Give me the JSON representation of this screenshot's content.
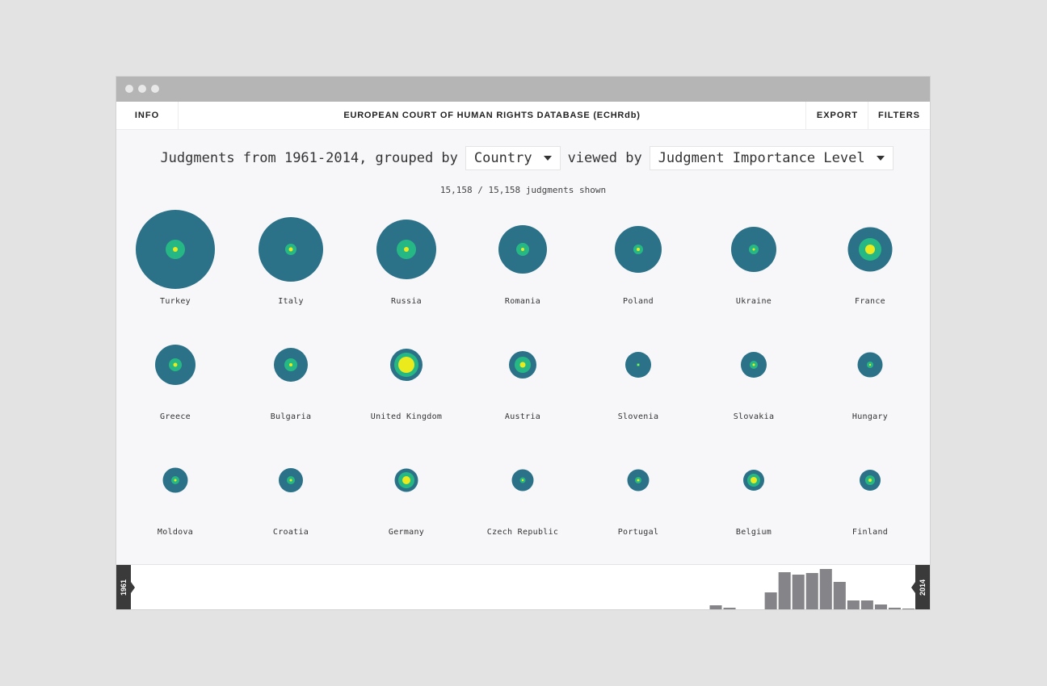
{
  "window": {
    "traffic_lights": [
      "close-dot",
      "minimize-dot",
      "maximize-dot"
    ]
  },
  "nav": {
    "info": "INFO",
    "title": "EUROPEAN COURT OF HUMAN RIGHTS DATABASE (ECHRdb)",
    "export": "EXPORT",
    "filters": "FILTERS"
  },
  "controls": {
    "prefix": "Judgments from 1961-2014, grouped by",
    "group_by": "Country",
    "middle": "viewed by",
    "view_by": "Judgment Importance Level"
  },
  "count_text": "15,158 / 15,158 judgments shown",
  "colors": {
    "outer": "#2b7289",
    "middle": "#26b884",
    "inner": "#eaea1d",
    "bars": "#858589",
    "handle": "#3a3a3a"
  },
  "countries": [
    {
      "name": "Turkey",
      "outer": 49,
      "middle": 12,
      "inner": 3
    },
    {
      "name": "Italy",
      "outer": 40,
      "middle": 7,
      "inner": 2.5
    },
    {
      "name": "Russia",
      "outer": 37,
      "middle": 12,
      "inner": 3
    },
    {
      "name": "Romania",
      "outer": 30,
      "middle": 8,
      "inner": 2
    },
    {
      "name": "Poland",
      "outer": 29,
      "middle": 6,
      "inner": 2
    },
    {
      "name": "Ukraine",
      "outer": 28,
      "middle": 6,
      "inner": 1.5
    },
    {
      "name": "France",
      "outer": 27.5,
      "middle": 14,
      "inner": 6
    },
    {
      "name": "Greece",
      "outer": 25,
      "middle": 8,
      "inner": 2.5
    },
    {
      "name": "Bulgaria",
      "outer": 21,
      "middle": 8,
      "inner": 2
    },
    {
      "name": "United Kingdom",
      "outer": 20,
      "middle": 15,
      "inner": 10
    },
    {
      "name": "Austria",
      "outer": 17,
      "middle": 10,
      "inner": 3.5
    },
    {
      "name": "Slovenia",
      "outer": 16,
      "middle": 2,
      "inner": 1
    },
    {
      "name": "Slovakia",
      "outer": 16,
      "middle": 5,
      "inner": 1.5
    },
    {
      "name": "Hungary",
      "outer": 15.5,
      "middle": 4,
      "inner": 1.2
    },
    {
      "name": "Moldova",
      "outer": 15.5,
      "middle": 5,
      "inner": 1.5
    },
    {
      "name": "Croatia",
      "outer": 15,
      "middle": 5,
      "inner": 1.5
    },
    {
      "name": "Germany",
      "outer": 14.5,
      "middle": 10,
      "inner": 5
    },
    {
      "name": "Czech Republic",
      "outer": 13.5,
      "middle": 3.5,
      "inner": 1.2
    },
    {
      "name": "Portugal",
      "outer": 13.5,
      "middle": 4,
      "inner": 1.5
    },
    {
      "name": "Belgium",
      "outer": 13,
      "middle": 8,
      "inner": 4
    },
    {
      "name": "Finland",
      "outer": 13,
      "middle": 6,
      "inner": 2
    }
  ],
  "timeline": {
    "start_year": "1961",
    "end_year": "2014",
    "bar_values": [
      0,
      0,
      0,
      0,
      0,
      0,
      0,
      0,
      0,
      0,
      0,
      0,
      0,
      0,
      0,
      0,
      0,
      0,
      0,
      0,
      0,
      0,
      0,
      0,
      0,
      0,
      0,
      0,
      0,
      0,
      0,
      0,
      0,
      0,
      0,
      0,
      0,
      0,
      0,
      0,
      0,
      0,
      6,
      3,
      0,
      1,
      22,
      47,
      44,
      46,
      51,
      35,
      12,
      12,
      7,
      3,
      2
    ]
  }
}
